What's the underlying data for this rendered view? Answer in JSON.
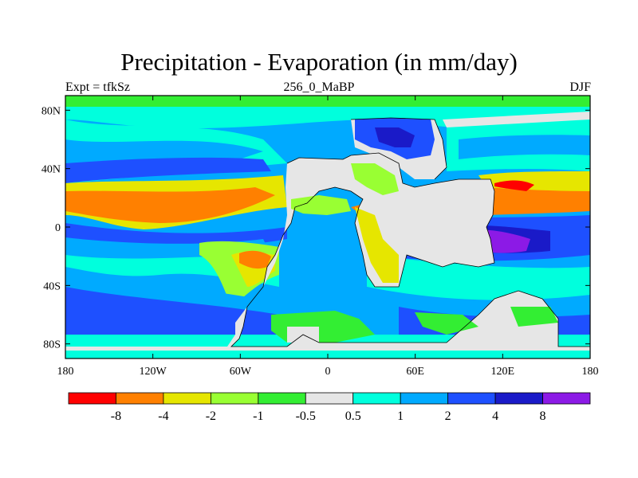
{
  "title": "Precipitation - Evaporation (in mm/day)",
  "subtitle_left": "Expt = tfkSz",
  "subtitle_center": "256_0_MaBP",
  "subtitle_right": "DJF",
  "y_ticks": [
    {
      "value": 80,
      "label": "80N"
    },
    {
      "value": 40,
      "label": "40N"
    },
    {
      "value": 0,
      "label": "0"
    },
    {
      "value": -40,
      "label": "40S"
    },
    {
      "value": -80,
      "label": "80S"
    }
  ],
  "x_ticks": [
    {
      "value": -180,
      "label": "180"
    },
    {
      "value": -120,
      "label": "120W"
    },
    {
      "value": -60,
      "label": "60W"
    },
    {
      "value": 0,
      "label": "0"
    },
    {
      "value": 60,
      "label": "60E"
    },
    {
      "value": 120,
      "label": "120E"
    },
    {
      "value": 180,
      "label": "180"
    }
  ],
  "colorbar": {
    "colors": [
      "#ff0000",
      "#ff8000",
      "#e6e600",
      "#99ff33",
      "#33ee33",
      "#e6e6e6",
      "#00ffdd",
      "#00aaff",
      "#1e50ff",
      "#1a1ac8",
      "#8c1ae6"
    ],
    "labels": [
      "-8",
      "-4",
      "-2",
      "-1",
      "-0.5",
      "0.5",
      "1",
      "2",
      "4",
      "8"
    ]
  },
  "chart_data": {
    "type": "map",
    "title": "Precipitation - Evaporation (in mm/day)",
    "subtitle": "256_0_MaBP",
    "experiment": "Expt = tfkSz",
    "season": "DJF",
    "xlim": [
      -180,
      180
    ],
    "ylim": [
      -90,
      90
    ],
    "levels": [
      -8,
      -4,
      -2,
      -1,
      -0.5,
      0.5,
      1,
      2,
      4,
      8
    ]
  }
}
